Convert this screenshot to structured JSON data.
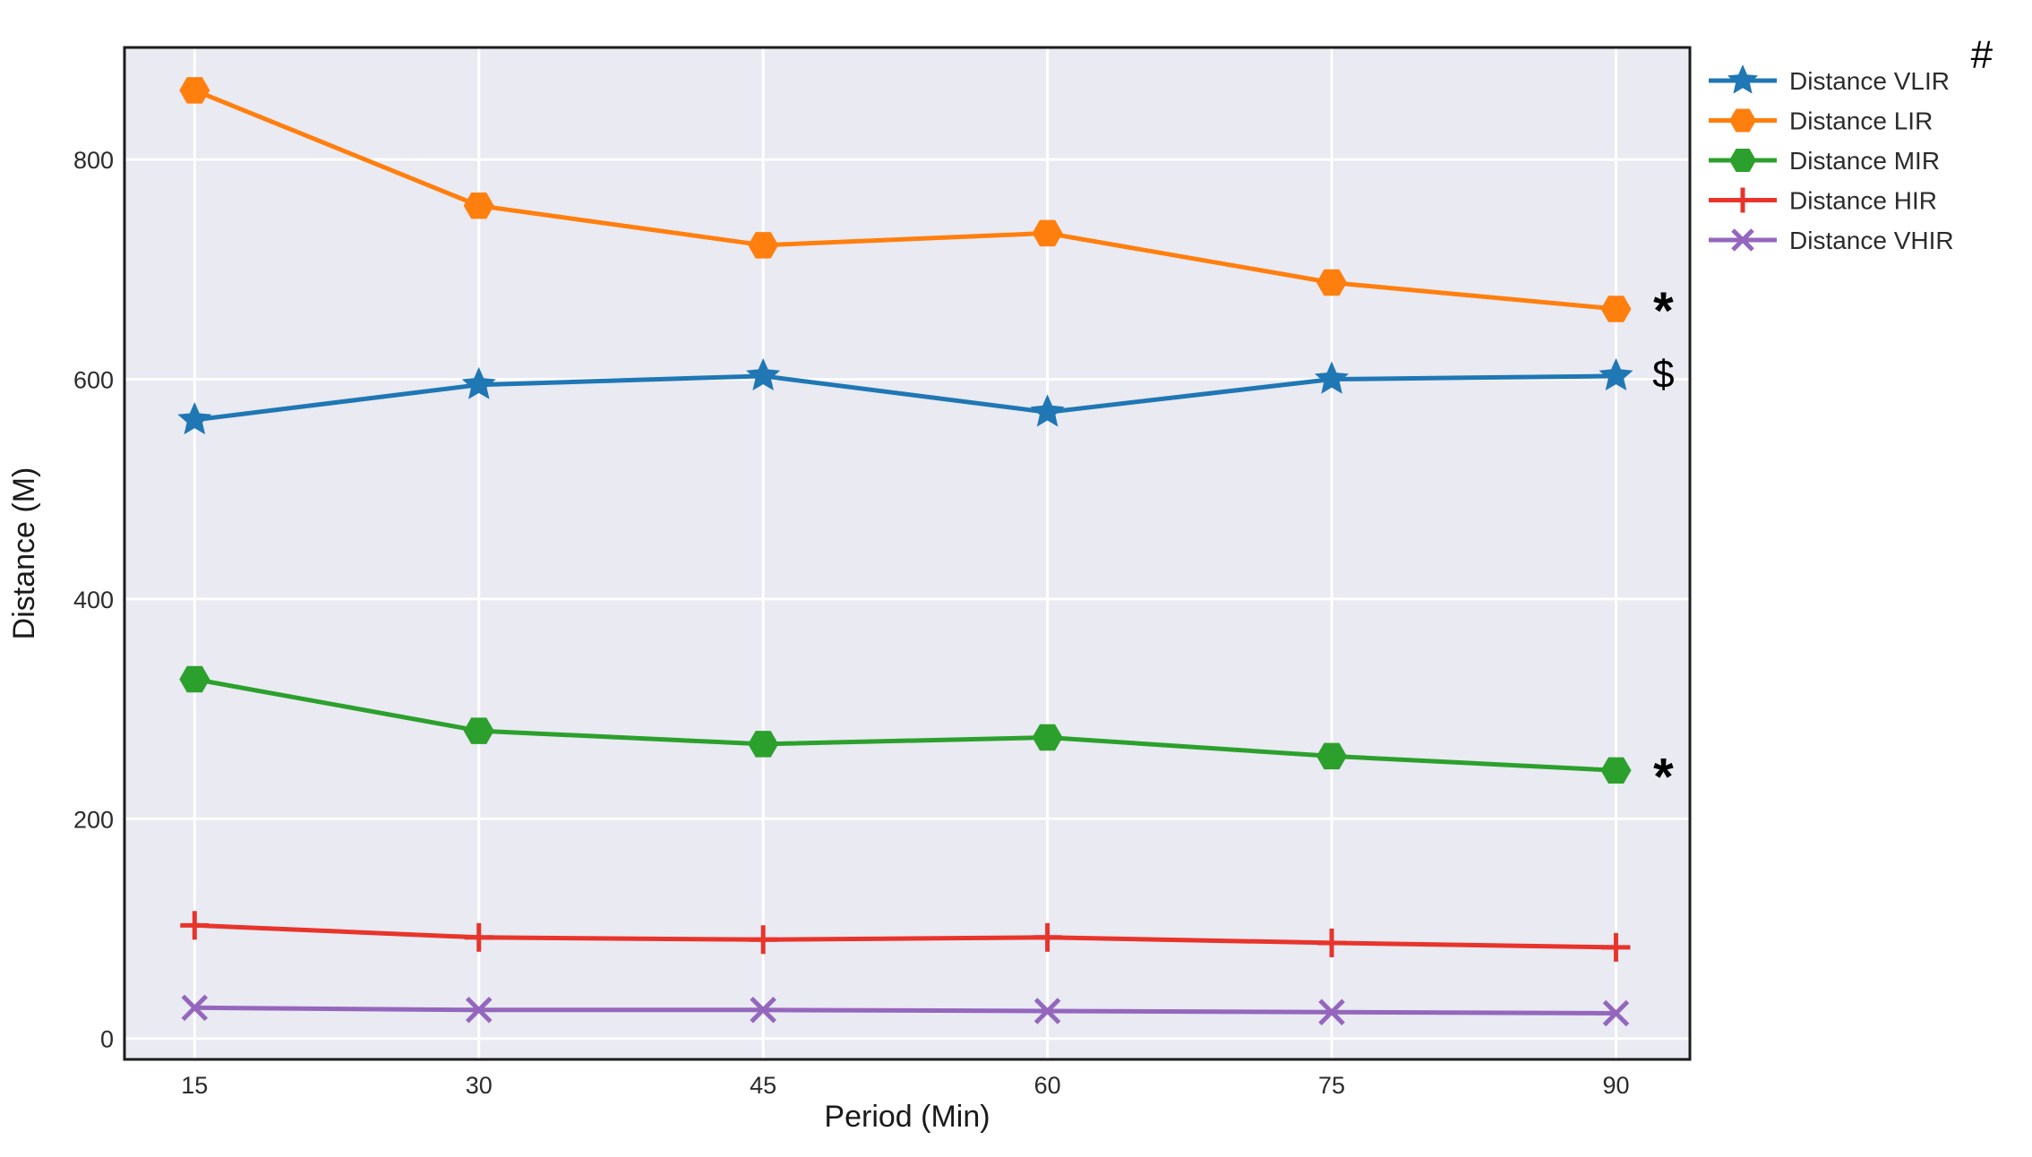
{
  "chart_data": {
    "type": "line",
    "title": "",
    "xlabel": "Period (Min)",
    "ylabel": "Distance (M)",
    "x": [
      15,
      30,
      45,
      60,
      75,
      90
    ],
    "xticks": [
      "15",
      "30",
      "45",
      "60",
      "75",
      "90"
    ],
    "yticks": [
      0,
      200,
      400,
      600,
      800
    ],
    "ytick_labels": [
      "0",
      "200",
      "400",
      "600",
      "800"
    ],
    "xlim": [
      11.3,
      93.9
    ],
    "ylim": [
      -19,
      902
    ],
    "grid": true,
    "background": "#e9eaf2",
    "grid_color": "#ffffff",
    "legend_position": "upper-right-outside",
    "series": [
      {
        "name": "Distance VLIR",
        "color": "#1f77b4",
        "marker": "star",
        "values": [
          563,
          595,
          603,
          570,
          600,
          603
        ]
      },
      {
        "name": "Distance LIR",
        "color": "#ff7f0e",
        "marker": "hexagon",
        "values": [
          863,
          758,
          722,
          733,
          688,
          664
        ]
      },
      {
        "name": "Distance MIR",
        "color": "#2ca02c",
        "marker": "hexagon",
        "values": [
          327,
          280,
          268,
          274,
          257,
          244
        ]
      },
      {
        "name": "Distance HIR",
        "color": "#e8342b",
        "marker": "plus",
        "values": [
          103,
          92,
          90,
          92,
          87,
          83
        ]
      },
      {
        "name": "Distance VHIR",
        "color": "#9467bd",
        "marker": "x",
        "values": [
          28,
          26,
          26,
          25,
          24,
          23
        ]
      }
    ],
    "annotations": [
      {
        "text": "#",
        "x": 109.3,
        "y": 896,
        "style": "plain"
      },
      {
        "text": "*",
        "x": 92.5,
        "y": 670,
        "style": "asterisk"
      },
      {
        "text": "$",
        "x": 92.5,
        "y": 605,
        "style": "plain"
      },
      {
        "text": "*",
        "x": 92.5,
        "y": 246,
        "style": "asterisk"
      }
    ]
  }
}
